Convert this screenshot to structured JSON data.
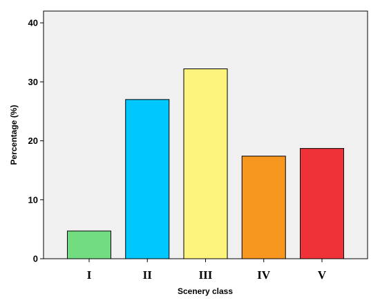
{
  "chart_data": {
    "type": "bar",
    "categories": [
      "I",
      "II",
      "III",
      "IV",
      "V"
    ],
    "values": [
      4.7,
      27.0,
      32.2,
      17.4,
      18.7
    ],
    "colors": [
      "#72dc80",
      "#00c8ff",
      "#fcf47c",
      "#f6961e",
      "#ee3238"
    ],
    "xlabel": "Scenery class",
    "ylabel": "Percentage (%)",
    "ylim": [
      0,
      42
    ],
    "yticks": [
      0,
      10,
      20,
      30,
      40
    ],
    "ytick_labels": [
      "0",
      "10",
      "20",
      "30",
      "40"
    ],
    "plot_background": "#f0f0f0",
    "grid": false,
    "legend": "none"
  }
}
